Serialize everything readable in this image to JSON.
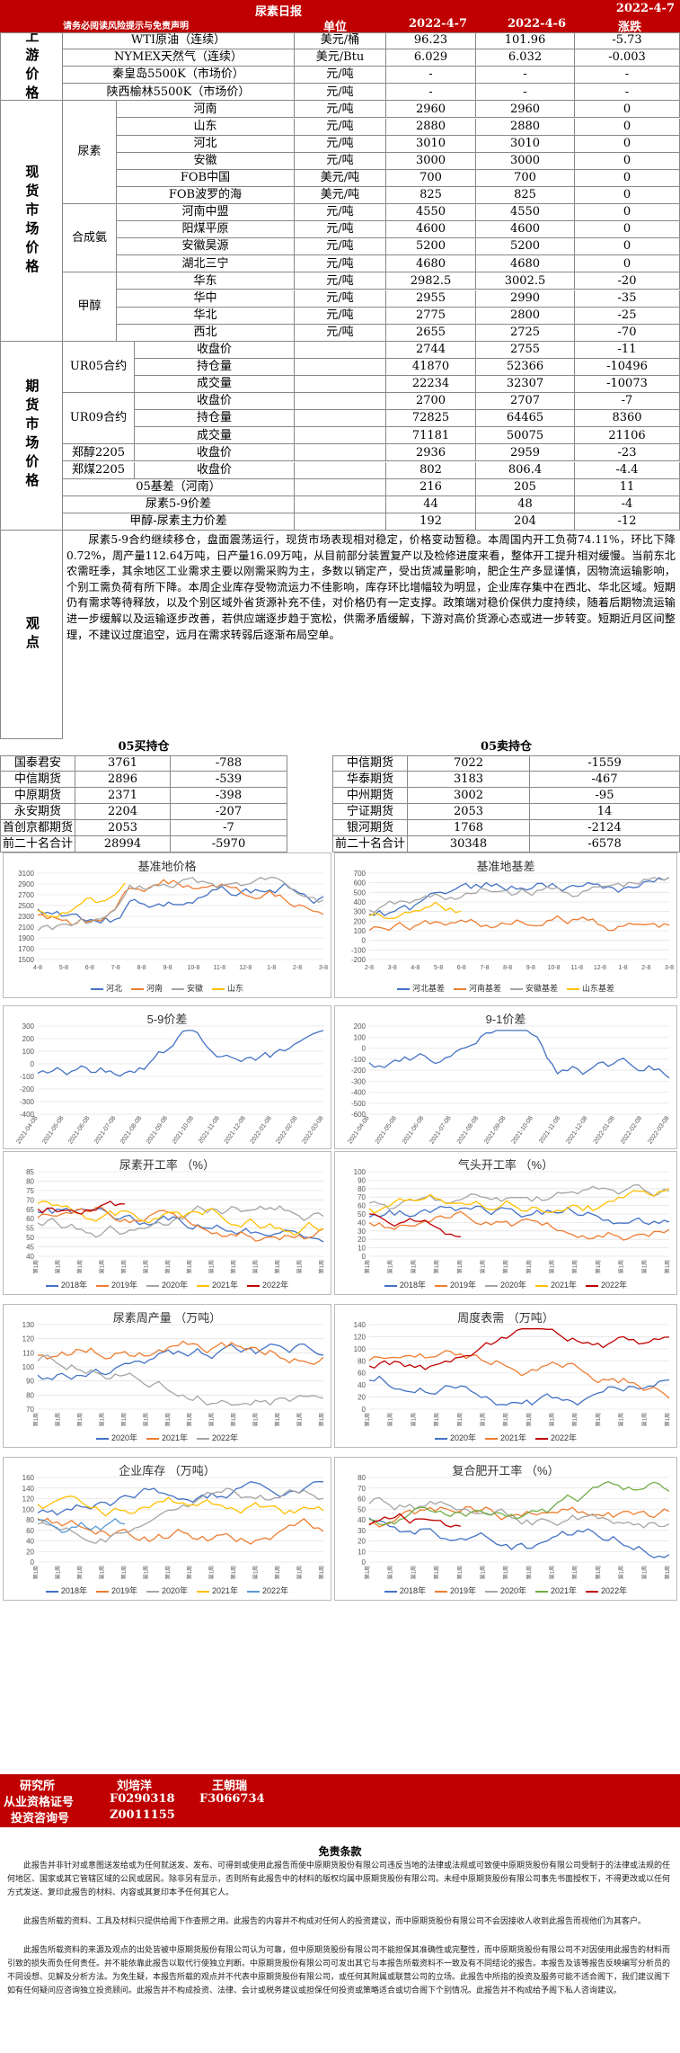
{
  "header": {
    "title": "尿素日报",
    "date": "2022-4-7",
    "disclaimer": "请务必阅读风险提示与免责声明",
    "col_unit": "单位",
    "col_d1": "2022-4-7",
    "col_d2": "2022-4-6",
    "col_chg": "涨跌"
  },
  "sections": {
    "upstream": "上游价格",
    "spot": "现货市场价格",
    "futures": "期货市场价格",
    "view": "观点"
  },
  "groups": {
    "urea": "尿素",
    "ammonia": "合成氨",
    "methanol": "甲醇",
    "ur05": "UR05合约",
    "ur09": "UR09合约"
  },
  "rows": [
    [
      "WTI原油（连续）",
      "美元/桶",
      "96.23",
      "101.96",
      "-5.73"
    ],
    [
      "NYMEX天然气（连续）",
      "美元/Btu",
      "6.029",
      "6.032",
      "-0.003"
    ],
    [
      "秦皇岛5500K（市场价）",
      "元/吨",
      "-",
      "-",
      "-"
    ],
    [
      "陕西榆林5500K（市场价）",
      "元/吨",
      "-",
      "-",
      "-"
    ],
    [
      "河南",
      "元/吨",
      "2960",
      "2960",
      "0"
    ],
    [
      "山东",
      "元/吨",
      "2880",
      "2880",
      "0"
    ],
    [
      "河北",
      "元/吨",
      "3010",
      "3010",
      "0"
    ],
    [
      "安徽",
      "元/吨",
      "3000",
      "3000",
      "0"
    ],
    [
      "FOB中国",
      "美元/吨",
      "700",
      "700",
      "0"
    ],
    [
      "FOB波罗的海",
      "美元/吨",
      "825",
      "825",
      "0"
    ],
    [
      "河南中盟",
      "元/吨",
      "4550",
      "4550",
      "0"
    ],
    [
      "阳煤平原",
      "元/吨",
      "4600",
      "4600",
      "0"
    ],
    [
      "安徽昊源",
      "元/吨",
      "5200",
      "5200",
      "0"
    ],
    [
      "湖北三宁",
      "元/吨",
      "4680",
      "4680",
      "0"
    ],
    [
      "华东",
      "元/吨",
      "2982.5",
      "3002.5",
      "-20"
    ],
    [
      "华中",
      "元/吨",
      "2955",
      "2990",
      "-35"
    ],
    [
      "华北",
      "元/吨",
      "2775",
      "2800",
      "-25"
    ],
    [
      "西北",
      "元/吨",
      "2655",
      "2725",
      "-70"
    ],
    [
      "收盘价",
      "",
      "2744",
      "2755",
      "-11"
    ],
    [
      "持仓量",
      "",
      "41870",
      "52366",
      "-10496"
    ],
    [
      "成交量",
      "",
      "22234",
      "32307",
      "-10073"
    ],
    [
      "收盘价",
      "",
      "2700",
      "2707",
      "-7"
    ],
    [
      "持仓量",
      "",
      "72825",
      "64465",
      "8360"
    ],
    [
      "成交量",
      "",
      "71181",
      "50075",
      "21106"
    ],
    [
      "收盘价",
      "",
      "2936",
      "2959",
      "-23"
    ],
    [
      "收盘价",
      "",
      "802",
      "806.4",
      "-4.4"
    ],
    [
      "05基差（河南）",
      "",
      "216",
      "205",
      "11"
    ],
    [
      "尿素5-9价差",
      "",
      "44",
      "48",
      "-4"
    ],
    [
      "甲醇-尿素主力价差",
      "",
      "192",
      "204",
      "-12"
    ]
  ],
  "fut_names": {
    "zc": "郑醇2205",
    "zm": "郑煤2205"
  },
  "view_text": "尿素5-9合约继续移仓，盘面震荡运行，现货市场表现相对稳定，价格变动暂稳。本周国内开工负荷74.11%，环比下降0.72%，周产量112.64万吨，日产量16.09万吨，从目前部分装置复产以及检修进度来看，整体开工提升相对缓慢。当前东北农需旺季，其余地区工业需求主要以刚需采购为主，多数以销定产，受出货减量影响，肥企生产多显谨慎，因物流运输影响，个别工需负荷有所下降。本周企业库存受物流运力不佳影响，库存环比增幅较为明显，企业库存集中在西北、华北区域。短期仍有需求等待释放，以及个别区域外省货源补充不佳，对价格仍有一定支撑。政策端对稳价保供力度持续，随着后期物流运输进一步缓解以及运输逐步改善，若供应端逐步趋于宽松，供需矛盾缓解，下游对高价货源心态或进一步转变。短期近月区间整理，不建议过度追空，远月在需求转弱后逐渐布局空单。",
  "pos": {
    "long_title": "05买持仓",
    "short_title": "05卖持仓",
    "long": [
      [
        "国泰君安",
        "3761",
        "-788"
      ],
      [
        "中信期货",
        "2896",
        "-539"
      ],
      [
        "中原期货",
        "2371",
        "-398"
      ],
      [
        "永安期货",
        "2204",
        "-207"
      ],
      [
        "首创京都期货",
        "2053",
        "-7"
      ],
      [
        "前二十名合计",
        "28994",
        "-5970"
      ]
    ],
    "short": [
      [
        "中信期货",
        "7022",
        "-1559"
      ],
      [
        "华泰期货",
        "3183",
        "-467"
      ],
      [
        "中州期货",
        "3002",
        "-95"
      ],
      [
        "宁证期货",
        "2053",
        "14"
      ],
      [
        "银河期货",
        "1768",
        "-2124"
      ],
      [
        "前二十名合计",
        "30348",
        "-6578"
      ]
    ]
  },
  "charts": {
    "c1": {
      "title": "基准地价格",
      "legend": [
        "河北",
        "河南",
        "安徽",
        "山东"
      ],
      "colors": [
        "#4472c4",
        "#ed7d31",
        "#a5a5a5",
        "#ffc000"
      ],
      "ylabels": [
        "3100",
        "2900",
        "2700",
        "2500",
        "2300",
        "2100",
        "1900",
        "1700",
        "1500"
      ],
      "xlabels": [
        "4-8",
        "5-8",
        "6-8",
        "7-8",
        "8-8",
        "9-8",
        "10-8",
        "11-8",
        "12-8",
        "1-8",
        "2-8",
        "3-8"
      ]
    },
    "c2": {
      "title": "基准地基差",
      "legend": [
        "河北基差",
        "河南基差",
        "安徽基差",
        "山东基差"
      ],
      "colors": [
        "#4472c4",
        "#ed7d31",
        "#a5a5a5",
        "#ffc000"
      ],
      "ylabels": [
        "700",
        "600",
        "500",
        "400",
        "300",
        "200",
        "100",
        "0",
        "-100",
        "-200"
      ],
      "xlabels": [
        "2-8",
        "3-8",
        "4-8",
        "5-8",
        "6-8",
        "7-8",
        "8-8",
        "9-8",
        "10-8",
        "11-8",
        "12-8",
        "1-8",
        "2-8",
        "3-8"
      ]
    },
    "c3": {
      "title": "5-9价差",
      "ylabels": [
        "300",
        "200",
        "100",
        "0",
        "-100",
        "-200",
        "-300",
        "-400"
      ],
      "xlabels": [
        "2021-04-08",
        "2021-05-08",
        "2021-06-08",
        "2021-07-08",
        "2021-08-08",
        "2021-09-08",
        "2021-10-08",
        "2021-11-08",
        "2021-12-08",
        "2022-01-08",
        "2022-02-08",
        "2022-03-08"
      ]
    },
    "c4": {
      "title": "9-1价差",
      "ylabels": [
        "200",
        "100",
        "0",
        "-100",
        "-200",
        "-300",
        "-400",
        "-500",
        "-600"
      ],
      "xlabels": [
        "2021-04-08",
        "2021-05-08",
        "2021-06-08",
        "2021-07-08",
        "2021-08-08",
        "2021-09-08",
        "2021-10-08",
        "2021-11-08",
        "2021-12-08",
        "2022-01-08",
        "2022-02-08",
        "2022-03-08"
      ]
    },
    "c5": {
      "title": "尿素开工率 （%）",
      "legend": [
        "2018年",
        "2019年",
        "2020年",
        "2021年",
        "2022年"
      ],
      "colors": [
        "#4472c4",
        "#ed7d31",
        "#a5a5a5",
        "#ffc000",
        "#c00000"
      ],
      "ylabels": [
        "85",
        "80",
        "75",
        "70",
        "65",
        "60",
        "55",
        "50",
        "45",
        "40"
      ]
    },
    "c6": {
      "title": "气头开工率 （%）",
      "legend": [
        "2018年",
        "2019年",
        "2020年",
        "2021年",
        "2022年"
      ],
      "colors": [
        "#4472c4",
        "#ed7d31",
        "#a5a5a5",
        "#ffc000",
        "#c00000"
      ],
      "ylabels": [
        "100",
        "90",
        "80",
        "70",
        "60",
        "50",
        "40",
        "30",
        "20",
        "10",
        "0"
      ]
    },
    "c7": {
      "title": "尿素周产量 （万吨）",
      "legend": [
        "2020年",
        "2021年",
        "2022年"
      ],
      "colors": [
        "#4472c4",
        "#ed7d31",
        "#a5a5a5"
      ],
      "ylabels": [
        "130",
        "120",
        "110",
        "100",
        "90",
        "80",
        "70"
      ]
    },
    "c8": {
      "title": "周度表需 （万吨）",
      "legend": [
        "2020年",
        "2021年",
        "2022年"
      ],
      "colors": [
        "#4472c4",
        "#ed7d31",
        "#c00000"
      ],
      "ylabels": [
        "140",
        "120",
        "100",
        "80",
        "60",
        "40",
        "20",
        "0"
      ]
    },
    "c9": {
      "title": "企业库存 （万吨）",
      "legend": [
        "2018年",
        "2019年",
        "2020年",
        "2021年",
        "2022年"
      ],
      "colors": [
        "#4472c4",
        "#ed7d31",
        "#a5a5a5",
        "#ffc000",
        "#5b9bd5"
      ],
      "ylabels": [
        "160",
        "140",
        "120",
        "100",
        "80",
        "60",
        "40",
        "20",
        "0"
      ]
    },
    "c10": {
      "title": "复合肥开工率 （%）",
      "legend": [
        "2018年",
        "2019年",
        "2020年",
        "2021年",
        "2022年"
      ],
      "colors": [
        "#4472c4",
        "#ed7d31",
        "#a5a5a5",
        "#70ad47",
        "#c00000"
      ],
      "ylabels": [
        "80",
        "70",
        "60",
        "50",
        "40",
        "30",
        "20",
        "10",
        "0"
      ]
    }
  },
  "week_label": "第1周",
  "staff": {
    "l1": "研究所",
    "l2": "从业资格证号",
    "l3": "投资咨询号",
    "a1": "刘培洋",
    "a2": "F0290318",
    "a3": "Z0011155",
    "b1": "王朝瑞",
    "b2": "F3066734"
  },
  "footer": {
    "title": "免责条款",
    "p1": "此报告并非针对或意图送发给或为任何就送发、发布、可得到或使用此报告而使中原期货股份有限公司违反当地的法律或法规或可致使中原期货股份有限公司受制于的法律或法规的任何地区、国家或其它管辖区域的公民或居民。除非另有显示，否则所有此报告中的材料的版权均属中原期货股份有限公司。未经中原期货股份有限公司事先书面授权下，不得更改或以任何方式发送、复印此报告的材料、内容或其复印本予任何其它人。",
    "p2": "此报告所载的资料、工具及材料只提供给阁下作查照之用。此报告的内容并不构成对任何人的投资建议，而中原期货股份有限公司不会因接收人收到此报告而视他们为其客户。",
    "p3": "此报告所载资料的来源及观点的出处皆被中原期货股份有限公司认为可靠，但中原期货股份有限公司不能担保其准确性或完整性，而中原期货股份有限公司不对因使用此报告的材料而引致的损失而负任何责任。并不能依靠此报告以取代行使独立判断。中原期货股份有限公司可发出其它与本报告所载资料不一致及有不同结论的报告。本报告及该等报告反映编写分析员的不同设想、见解及分析方法。为免生疑，本报告所载的观点并不代表中原期货股份有限公司，或任何其附属或联营公司的立场。此报告中所指的投资及服务可能不适合阁下，我们建议阁下如有任何疑问应咨询独立投资顾问。此报告并不构成投资、法律、会计或税务建议或担保任何投资或策略适合或切合阁下个别情况。此报告并不构成给予阁下私人咨询建议。"
  }
}
